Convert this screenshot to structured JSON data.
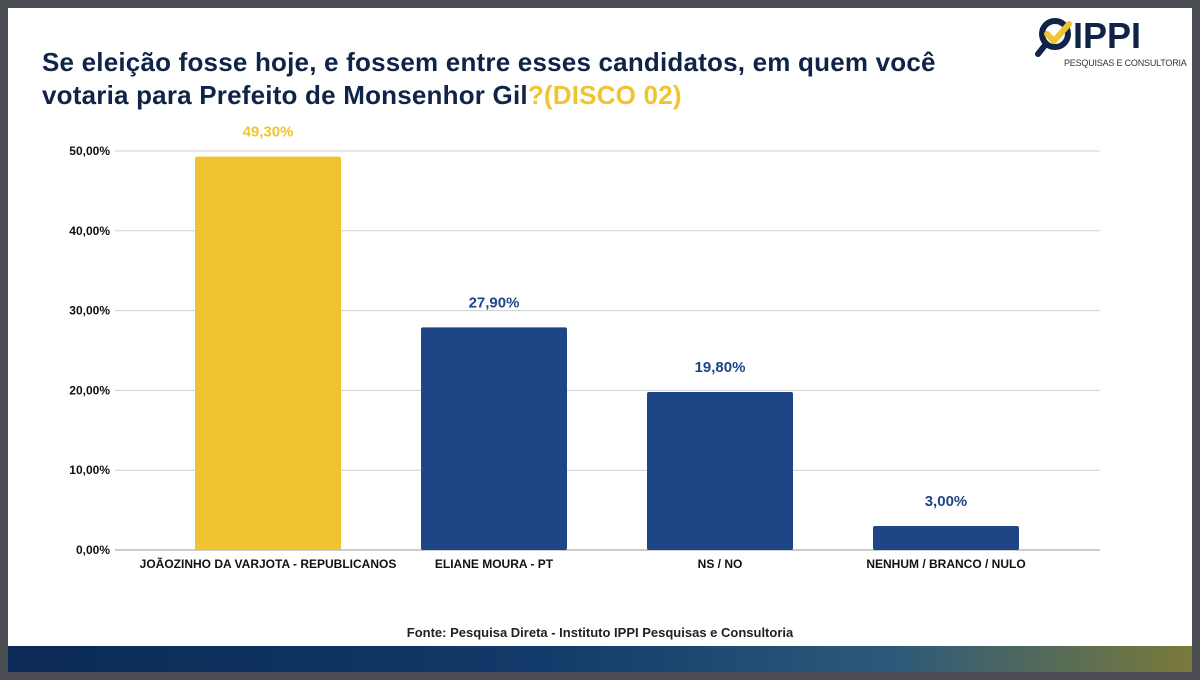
{
  "title": {
    "main": "Se eleição fosse hoje, e fossem entre esses candidatos, em quem você votaria para Prefeito de Monsenhor Gil",
    "highlight": "?(DISCO 02)"
  },
  "logo": {
    "text": "IPPI",
    "subtitle": "PESQUISAS E CONSULTORIA"
  },
  "source": "Fonte: Pesquisa Direta - Instituto IPPI Pesquisas e Consultoria",
  "colors": {
    "title": "#0f2447",
    "highlight": "#f0c330",
    "bar_primary": "#f0c330",
    "bar_other": "#1e4586"
  },
  "chart_data": {
    "type": "bar",
    "categories": [
      "JOÃOZINHO DA VARJOTA - REPUBLICANOS",
      "ELIANE MOURA - PT",
      "NS / NO",
      "NENHUM / BRANCO / NULO"
    ],
    "values": [
      49.3,
      27.9,
      19.8,
      3.0
    ],
    "data_labels": [
      "49,30%",
      "27,90%",
      "19,80%",
      "3,00%"
    ],
    "bar_colors": [
      "#f0c330",
      "#1e4586",
      "#1e4586",
      "#1e4586"
    ],
    "ylim": [
      0,
      50
    ],
    "yticks": [
      0,
      10,
      20,
      30,
      40,
      50
    ],
    "ytick_labels": [
      "0,00%",
      "10,00%",
      "20,00%",
      "30,00%",
      "40,00%",
      "50,00%"
    ],
    "grid": true,
    "legend": "none"
  }
}
